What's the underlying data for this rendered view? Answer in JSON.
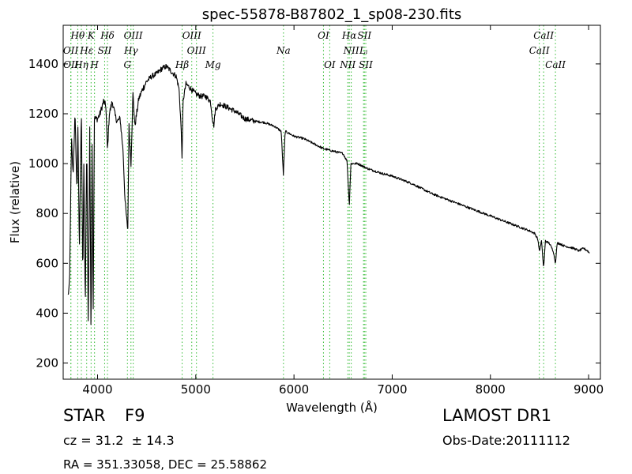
{
  "chart_data": {
    "type": "line",
    "title": "spec-55878-B87802_1_sp08-230.fits",
    "xlabel": "Wavelength (Å)",
    "ylabel": "Flux (relative)",
    "xlim": [
      3650,
      9120
    ],
    "ylim": [
      135,
      1555
    ],
    "xticks": [
      4000,
      5000,
      6000,
      7000,
      8000,
      9000
    ],
    "yticks": [
      200,
      400,
      600,
      800,
      1000,
      1200,
      1400
    ],
    "grid": false,
    "line_color": "#000000",
    "marker_color": "#33bb33",
    "spectrum_anchors": {
      "x": [
        3700,
        3715,
        3725,
        3735,
        3750,
        3770,
        3790,
        3800,
        3815,
        3835,
        3850,
        3860,
        3875,
        3890,
        3905,
        3920,
        3933,
        3945,
        3955,
        3968,
        3980,
        4000,
        4025,
        4060,
        4085,
        4101,
        4120,
        4150,
        4180,
        4200,
        4230,
        4260,
        4280,
        4300,
        4308,
        4320,
        4340,
        4360,
        4380,
        4420,
        4460,
        4500,
        4550,
        4600,
        4650,
        4700,
        4750,
        4800,
        4830,
        4850,
        4861,
        4870,
        4900,
        4950,
        5000,
        5050,
        5100,
        5150,
        5170,
        5183,
        5200,
        5250,
        5300,
        5400,
        5500,
        5600,
        5700,
        5800,
        5870,
        5892,
        5910,
        6000,
        6100,
        6200,
        6300,
        6400,
        6500,
        6540,
        6563,
        6580,
        6650,
        6750,
        6900,
        7000,
        7200,
        7400,
        7600,
        7800,
        8000,
        8200,
        8400,
        8450,
        8480,
        8500,
        8520,
        8542,
        8560,
        8600,
        8640,
        8662,
        8680,
        8700,
        8750,
        8800,
        8850,
        8900,
        8950,
        8990,
        9010
      ],
      "y": [
        470,
        520,
        830,
        1100,
        950,
        1200,
        880,
        1150,
        650,
        1230,
        520,
        1000,
        420,
        1100,
        320,
        1150,
        290,
        1160,
        360,
        1180,
        1180,
        1180,
        1200,
        1250,
        1230,
        1050,
        1200,
        1250,
        1190,
        1170,
        1180,
        1050,
        850,
        760,
        740,
        1150,
        1000,
        1280,
        1150,
        1260,
        1300,
        1330,
        1350,
        1360,
        1380,
        1390,
        1370,
        1350,
        1300,
        1150,
        1020,
        1250,
        1320,
        1300,
        1280,
        1270,
        1270,
        1250,
        1180,
        1150,
        1220,
        1240,
        1230,
        1210,
        1180,
        1170,
        1165,
        1150,
        1130,
        955,
        1130,
        1110,
        1100,
        1080,
        1060,
        1050,
        1040,
        1010,
        830,
        1000,
        1000,
        980,
        960,
        950,
        920,
        880,
        850,
        820,
        790,
        760,
        730,
        720,
        700,
        650,
        690,
        580,
        690,
        680,
        650,
        600,
        680,
        680,
        670,
        665,
        660,
        650,
        660,
        650,
        640
      ]
    },
    "spectral_lines": [
      {
        "label": "Hθ",
        "x": 3798,
        "row": 0
      },
      {
        "label": "K",
        "x": 3934,
        "row": 0
      },
      {
        "label": "Hδ",
        "x": 4101,
        "row": 0
      },
      {
        "label": "OIII",
        "x": 4363,
        "row": 0
      },
      {
        "label": "OIII",
        "x": 4959,
        "row": 0
      },
      {
        "label": "OI",
        "x": 6300,
        "row": 0
      },
      {
        "label": "Hα",
        "x": 6563,
        "row": 0
      },
      {
        "label": "SII",
        "x": 6717,
        "row": 0
      },
      {
        "label": "CaII",
        "x": 8542,
        "row": 0
      },
      {
        "label": "OII",
        "x": 3727,
        "row": 1
      },
      {
        "label": "Hε",
        "x": 3889,
        "row": 1
      },
      {
        "label": "SII",
        "x": 4072,
        "row": 1
      },
      {
        "label": "Hγ",
        "x": 4340,
        "row": 1
      },
      {
        "label": "OIII",
        "x": 5007,
        "row": 1
      },
      {
        "label": "Na",
        "x": 5893,
        "row": 1
      },
      {
        "label": "NII",
        "x": 6583,
        "row": 1
      },
      {
        "label": "Lᵢ",
        "x": 6708,
        "row": 1
      },
      {
        "label": "CaII",
        "x": 8498,
        "row": 1
      },
      {
        "label": "OII",
        "x": 3729,
        "row": 2
      },
      {
        "label": "Hη",
        "x": 3835,
        "row": 2
      },
      {
        "label": "H",
        "x": 3969,
        "row": 2
      },
      {
        "label": "G",
        "x": 4304,
        "row": 2
      },
      {
        "label": "Hβ",
        "x": 4861,
        "row": 2
      },
      {
        "label": "Mg",
        "x": 5175,
        "row": 2
      },
      {
        "label": "OI",
        "x": 6364,
        "row": 2
      },
      {
        "label": "NII",
        "x": 6548,
        "row": 2
      },
      {
        "label": "SII",
        "x": 6731,
        "row": 2
      },
      {
        "label": "CaII",
        "x": 8662,
        "row": 2
      }
    ]
  },
  "info": {
    "object_class": "STAR",
    "subclass": "F9",
    "survey": "LAMOST DR1",
    "redshift": "cz = 31.2  ± 14.3",
    "obs_date": "Obs-Date:20111112",
    "coordinates": "RA = 351.33058, DEC = 25.58862"
  }
}
